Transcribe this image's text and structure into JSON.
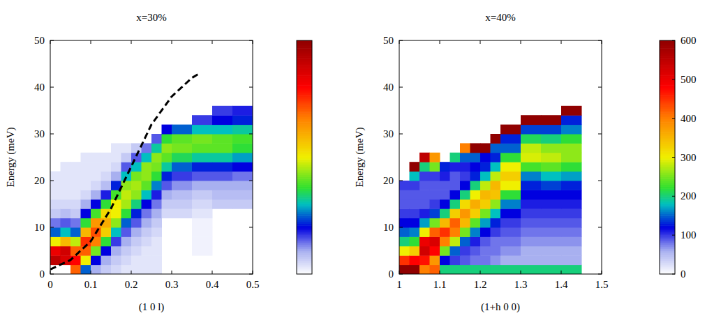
{
  "chart_data": [
    {
      "type": "heatmap",
      "title": "x=30%",
      "x_label": "(1 0 l)",
      "y_label": "Energy (meV)",
      "xlim": [
        0,
        0.5
      ],
      "ylim": [
        0,
        50
      ],
      "xticks": [
        0,
        0.1,
        0.2,
        0.3,
        0.4,
        0.5
      ],
      "yticks": [
        0,
        10,
        20,
        30,
        40,
        50
      ],
      "bin_width": 2,
      "columns": [
        {
          "x": [
            0,
            0.025
          ],
          "e0": 2,
          "values": [
            550,
            500,
            300,
            150,
            80,
            40,
            30,
            20,
            20,
            20
          ]
        },
        {
          "x": [
            0.025,
            0.05
          ],
          "e0": 2,
          "values": [
            520,
            530,
            350,
            180,
            90,
            50,
            30,
            20,
            20,
            20,
            20
          ]
        },
        {
          "x": [
            0.05,
            0.075
          ],
          "e0": 0,
          "values": [
            420,
            480,
            420,
            280,
            150,
            80,
            40,
            30,
            20,
            20,
            20,
            20
          ]
        },
        {
          "x": [
            0.075,
            0.1
          ],
          "e0": 0,
          "values": [
            150,
            300,
            420,
            450,
            350,
            220,
            120,
            60,
            30,
            20,
            20,
            20,
            20
          ]
        },
        {
          "x": [
            0.1,
            0.125
          ],
          "e0": 0,
          "values": [
            60,
            120,
            250,
            400,
            430,
            380,
            230,
            120,
            60,
            30,
            20,
            20,
            20
          ]
        },
        {
          "x": [
            0.125,
            0.15
          ],
          "e0": 0,
          "values": [
            40,
            60,
            120,
            220,
            330,
            360,
            320,
            220,
            110,
            50,
            30,
            20,
            20
          ]
        },
        {
          "x": [
            0.15,
            0.175
          ],
          "e0": 0,
          "values": [
            30,
            40,
            60,
            100,
            180,
            260,
            300,
            300,
            230,
            130,
            60,
            30,
            20,
            20
          ]
        },
        {
          "x": [
            0.175,
            0.2
          ],
          "e0": 0,
          "values": [
            20,
            30,
            40,
            60,
            90,
            150,
            220,
            270,
            280,
            260,
            180,
            90,
            40,
            20
          ]
        },
        {
          "x": [
            0.2,
            0.225
          ],
          "e0": 0,
          "values": [
            20,
            20,
            30,
            40,
            60,
            90,
            130,
            200,
            260,
            270,
            250,
            180,
            90,
            40
          ]
        },
        {
          "x": [
            0.225,
            0.25
          ],
          "e0": 0,
          "values": [
            20,
            20,
            20,
            30,
            40,
            60,
            80,
            120,
            180,
            240,
            260,
            260,
            180,
            80
          ]
        },
        {
          "x": [
            0.25,
            0.275
          ],
          "e0": 0,
          "values": [
            20,
            20,
            20,
            20,
            30,
            40,
            60,
            80,
            110,
            160,
            220,
            250,
            260,
            190,
            90
          ]
        },
        {
          "x": [
            0.275,
            0.3
          ],
          "e0": 12,
          "values": [
            30,
            40,
            60,
            90,
            130,
            190,
            240,
            260,
            220,
            120
          ]
        },
        {
          "x": [
            0.3,
            0.35
          ],
          "e0": 12,
          "values": [
            30,
            40,
            50,
            70,
            100,
            150,
            210,
            250,
            240,
            150
          ]
        },
        {
          "x": [
            0.35,
            0.4
          ],
          "e0": 4,
          "values": [
            10,
            10,
            10,
            10,
            20,
            30,
            40,
            60,
            90,
            130,
            190,
            240,
            250,
            180,
            100
          ]
        },
        {
          "x": [
            0.4,
            0.45
          ],
          "e0": 14,
          "values": [
            40,
            50,
            60,
            90,
            130,
            190,
            240,
            240,
            180,
            120,
            100
          ]
        },
        {
          "x": [
            0.45,
            0.5
          ],
          "e0": 14,
          "values": [
            40,
            50,
            60,
            80,
            120,
            170,
            220,
            230,
            190,
            130,
            110
          ]
        }
      ],
      "series": [
        {
          "type": "line",
          "line_style": "dashed",
          "color": "#000000",
          "x": [
            0,
            0.05,
            0.1,
            0.15,
            0.2,
            0.25,
            0.3,
            0.35,
            0.37
          ],
          "values": [
            1,
            3,
            7,
            14,
            23,
            32,
            38,
            42,
            43
          ]
        }
      ],
      "colorbar": {
        "range": [
          0,
          600
        ],
        "ticks": []
      }
    },
    {
      "type": "heatmap",
      "title": "x=40%",
      "x_label": "(1+h 0 0)",
      "y_label": "Energy (meV)",
      "xlim": [
        1,
        1.5
      ],
      "ylim": [
        0,
        50
      ],
      "xticks": [
        1,
        1.1,
        1.2,
        1.3,
        1.4,
        1.5
      ],
      "yticks": [
        0,
        10,
        20,
        30,
        40,
        50
      ],
      "bin_width": 2,
      "columns": [
        {
          "x": [
            1,
            1.025
          ],
          "e0": 0,
          "values": [
            620,
            450,
            300,
            200,
            150,
            120,
            100,
            90,
            90,
            100
          ]
        },
        {
          "x": [
            1.025,
            1.05
          ],
          "e0": 0,
          "values": [
            600,
            480,
            330,
            220,
            160,
            120,
            100,
            90,
            90,
            100,
            180,
            600
          ]
        },
        {
          "x": [
            1.05,
            1.075
          ],
          "e0": 0,
          "values": [
            400,
            470,
            530,
            500,
            300,
            170,
            110,
            90,
            90,
            90,
            100,
            200,
            550
          ]
        },
        {
          "x": [
            1.075,
            1.1
          ],
          "e0": 0,
          "values": [
            420,
            380,
            480,
            520,
            420,
            250,
            140,
            100,
            90,
            90,
            100,
            250,
            380
          ]
        },
        {
          "x": [
            1.1,
            1.125
          ],
          "e0": 0,
          "values": [
            200,
            120,
            250,
            400,
            450,
            350,
            200,
            120,
            90,
            90,
            110,
            130
          ]
        },
        {
          "x": [
            1.125,
            1.15
          ],
          "e0": 0,
          "values": [
            200,
            100,
            150,
            280,
            400,
            420,
            330,
            200,
            120,
            90,
            90,
            110,
            200
          ]
        },
        {
          "x": [
            1.15,
            1.175
          ],
          "e0": 0,
          "values": [
            200,
            90,
            100,
            150,
            250,
            350,
            380,
            320,
            200,
            120,
            100,
            110,
            150,
            400
          ]
        },
        {
          "x": [
            1.175,
            1.2
          ],
          "e0": 0,
          "values": [
            200,
            80,
            90,
            110,
            160,
            240,
            330,
            360,
            300,
            200,
            130,
            120,
            150,
            600
          ]
        },
        {
          "x": [
            1.2,
            1.225
          ],
          "e0": 0,
          "values": [
            200,
            80,
            80,
            90,
            120,
            170,
            250,
            330,
            350,
            280,
            180,
            130,
            120,
            600
          ]
        },
        {
          "x": [
            1.225,
            1.25
          ],
          "e0": 0,
          "values": [
            200,
            70,
            80,
            80,
            100,
            130,
            180,
            260,
            340,
            350,
            280,
            180,
            130,
            150,
            600
          ]
        },
        {
          "x": [
            1.25,
            1.3
          ],
          "e0": 0,
          "values": [
            200,
            60,
            70,
            80,
            90,
            100,
            120,
            160,
            220,
            300,
            330,
            300,
            220,
            150,
            130,
            600
          ]
        },
        {
          "x": [
            1.3,
            1.35
          ],
          "e0": 0,
          "values": [
            200,
            60,
            60,
            70,
            80,
            90,
            100,
            110,
            120,
            130,
            160,
            230,
            290,
            280,
            210,
            140,
            600
          ]
        },
        {
          "x": [
            1.35,
            1.4
          ],
          "e0": 0,
          "values": [
            200,
            60,
            60,
            70,
            80,
            90,
            100,
            110,
            120,
            140,
            180,
            240,
            280,
            260,
            200,
            140,
            600
          ]
        },
        {
          "x": [
            1.4,
            1.45
          ],
          "e0": 0,
          "values": [
            200,
            60,
            60,
            70,
            80,
            90,
            100,
            110,
            120,
            130,
            170,
            220,
            260,
            260,
            220,
            160,
            130,
            600
          ]
        }
      ],
      "colorbar": {
        "range": [
          0,
          600
        ],
        "ticks": [
          0,
          100,
          200,
          300,
          400,
          500,
          600
        ]
      }
    }
  ]
}
